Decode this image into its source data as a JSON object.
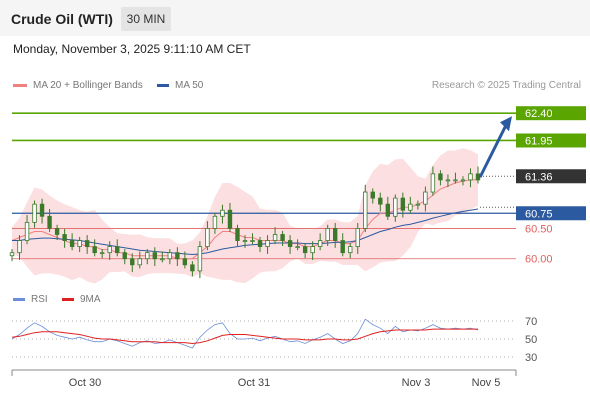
{
  "header": {
    "instrument": "Crude Oil (WTI)",
    "timeframe": "30 MIN",
    "datetime": "Monday, November 3, 2025 9:11:10 AM CET"
  },
  "legend": {
    "ma20": "MA 20 + Bollinger Bands",
    "ma50": "MA 50",
    "credit": "Research © 2025 Trading Central"
  },
  "rsi_legend": {
    "rsi": "RSI",
    "ma9": "9MA"
  },
  "colors": {
    "bollinger_fill": "#fcd9dc",
    "ma20": "#f08080",
    "ma50": "#2c5aa0",
    "resistance": "#5aa500",
    "pivot": "#2c5aa0",
    "support": "#e06060",
    "current": "#333333",
    "candle": "#3a7a2a",
    "arrow": "#2c5aa0",
    "rsi": "#6a8fd8",
    "rsi_ma": "#e02020"
  },
  "chart_data": [
    {
      "type": "candlestick",
      "title": "Crude Oil (WTI)",
      "timeframe": "30 MIN",
      "x_tick_labels": [
        "Oct 30",
        "Oct 31",
        "Nov 3",
        "Nov 5"
      ],
      "ylim": [
        59.6,
        62.7
      ],
      "levels": [
        {
          "label": "62.40",
          "value": 62.4,
          "kind": "resistance"
        },
        {
          "label": "61.95",
          "value": 61.95,
          "kind": "resistance"
        },
        {
          "label": "61.36",
          "value": 61.36,
          "kind": "current"
        },
        {
          "label": "60.75",
          "value": 60.75,
          "kind": "pivot"
        },
        {
          "label": "60.50",
          "value": 60.5,
          "kind": "support"
        },
        {
          "label": "60.00",
          "value": 60.0,
          "kind": "support"
        }
      ],
      "series": [
        {
          "name": "Crude Oil (WTI)",
          "type": "candlestick",
          "values": [
            60.1,
            60.3,
            60.6,
            60.9,
            60.7,
            60.5,
            60.4,
            60.3,
            60.2,
            60.3,
            60.2,
            60.1,
            60.1,
            60.2,
            60.1,
            60.0,
            59.9,
            60.0,
            60.1,
            60.0,
            60.0,
            60.1,
            60.0,
            59.9,
            59.8,
            60.2,
            60.5,
            60.7,
            60.8,
            60.5,
            60.3,
            60.3,
            60.3,
            60.2,
            60.3,
            60.4,
            60.3,
            60.2,
            60.2,
            60.1,
            60.2,
            60.3,
            60.5,
            60.3,
            60.1,
            60.2,
            60.5,
            61.1,
            61.0,
            60.9,
            60.7,
            61.0,
            60.8,
            60.9,
            60.9,
            61.1,
            61.4,
            61.3,
            61.3,
            61.3,
            61.3,
            61.4,
            61.3
          ]
        },
        {
          "name": "MA 20",
          "type": "line",
          "values": [
            60.3,
            60.35,
            60.4,
            60.45,
            60.45,
            60.4,
            60.35,
            60.3,
            60.25,
            60.25,
            60.2,
            60.2,
            60.15,
            60.15,
            60.1,
            60.1,
            60.05,
            60.05,
            60.05,
            60.05,
            60.05,
            60.05,
            60.0,
            60.0,
            60.0,
            60.1,
            60.2,
            60.35,
            60.45,
            60.45,
            60.4,
            60.35,
            60.35,
            60.3,
            60.3,
            60.3,
            60.3,
            60.25,
            60.25,
            60.2,
            60.2,
            60.25,
            60.3,
            60.3,
            60.25,
            60.25,
            60.3,
            60.5,
            60.65,
            60.75,
            60.75,
            60.8,
            60.85,
            60.85,
            60.9,
            60.95,
            61.05,
            61.15,
            61.2,
            61.25,
            61.28,
            61.3,
            61.3
          ]
        },
        {
          "name": "MA 50",
          "type": "line",
          "values": [
            60.3,
            60.3,
            60.32,
            60.33,
            60.34,
            60.34,
            60.33,
            60.32,
            60.31,
            60.3,
            60.28,
            60.26,
            60.24,
            60.22,
            60.2,
            60.18,
            60.16,
            60.14,
            60.13,
            60.12,
            60.11,
            60.1,
            60.09,
            60.08,
            60.07,
            60.08,
            60.1,
            60.13,
            60.16,
            60.18,
            60.2,
            60.22,
            60.23,
            60.24,
            60.25,
            60.26,
            60.26,
            60.26,
            60.26,
            60.25,
            60.25,
            60.25,
            60.26,
            60.27,
            60.27,
            60.28,
            60.3,
            60.35,
            60.4,
            60.45,
            60.48,
            60.52,
            60.55,
            60.57,
            60.6,
            60.63,
            60.67,
            60.7,
            60.73,
            60.76,
            60.78,
            60.8,
            60.82
          ]
        }
      ]
    },
    {
      "type": "line",
      "title": "RSI",
      "yticks": [
        30,
        50,
        70
      ],
      "ylim": [
        20,
        80
      ],
      "x_tick_labels": [
        "Oct 30",
        "Oct 31",
        "Nov 3",
        "Nov 5"
      ],
      "series": [
        {
          "name": "RSI",
          "values": [
            50,
            55,
            62,
            68,
            64,
            58,
            54,
            52,
            50,
            52,
            49,
            47,
            47,
            50,
            48,
            45,
            42,
            46,
            48,
            45,
            46,
            49,
            46,
            43,
            40,
            52,
            60,
            66,
            68,
            56,
            50,
            50,
            51,
            48,
            51,
            53,
            50,
            47,
            48,
            45,
            49,
            52,
            56,
            50,
            45,
            48,
            56,
            72,
            66,
            62,
            56,
            64,
            58,
            60,
            59,
            62,
            66,
            62,
            61,
            62,
            61,
            62,
            60
          ]
        },
        {
          "name": "9MA",
          "values": [
            52,
            53,
            55,
            57,
            58,
            58,
            58,
            57,
            56,
            55,
            53,
            51,
            50,
            50,
            49,
            48,
            47,
            47,
            47,
            47,
            46,
            46,
            46,
            46,
            45,
            46,
            48,
            51,
            54,
            55,
            55,
            55,
            54,
            53,
            52,
            51,
            50,
            50,
            50,
            49,
            49,
            49,
            50,
            50,
            49,
            49,
            50,
            53,
            56,
            58,
            59,
            60,
            60,
            60,
            60,
            60,
            61,
            61,
            61,
            61,
            61,
            61,
            61
          ]
        }
      ]
    }
  ]
}
